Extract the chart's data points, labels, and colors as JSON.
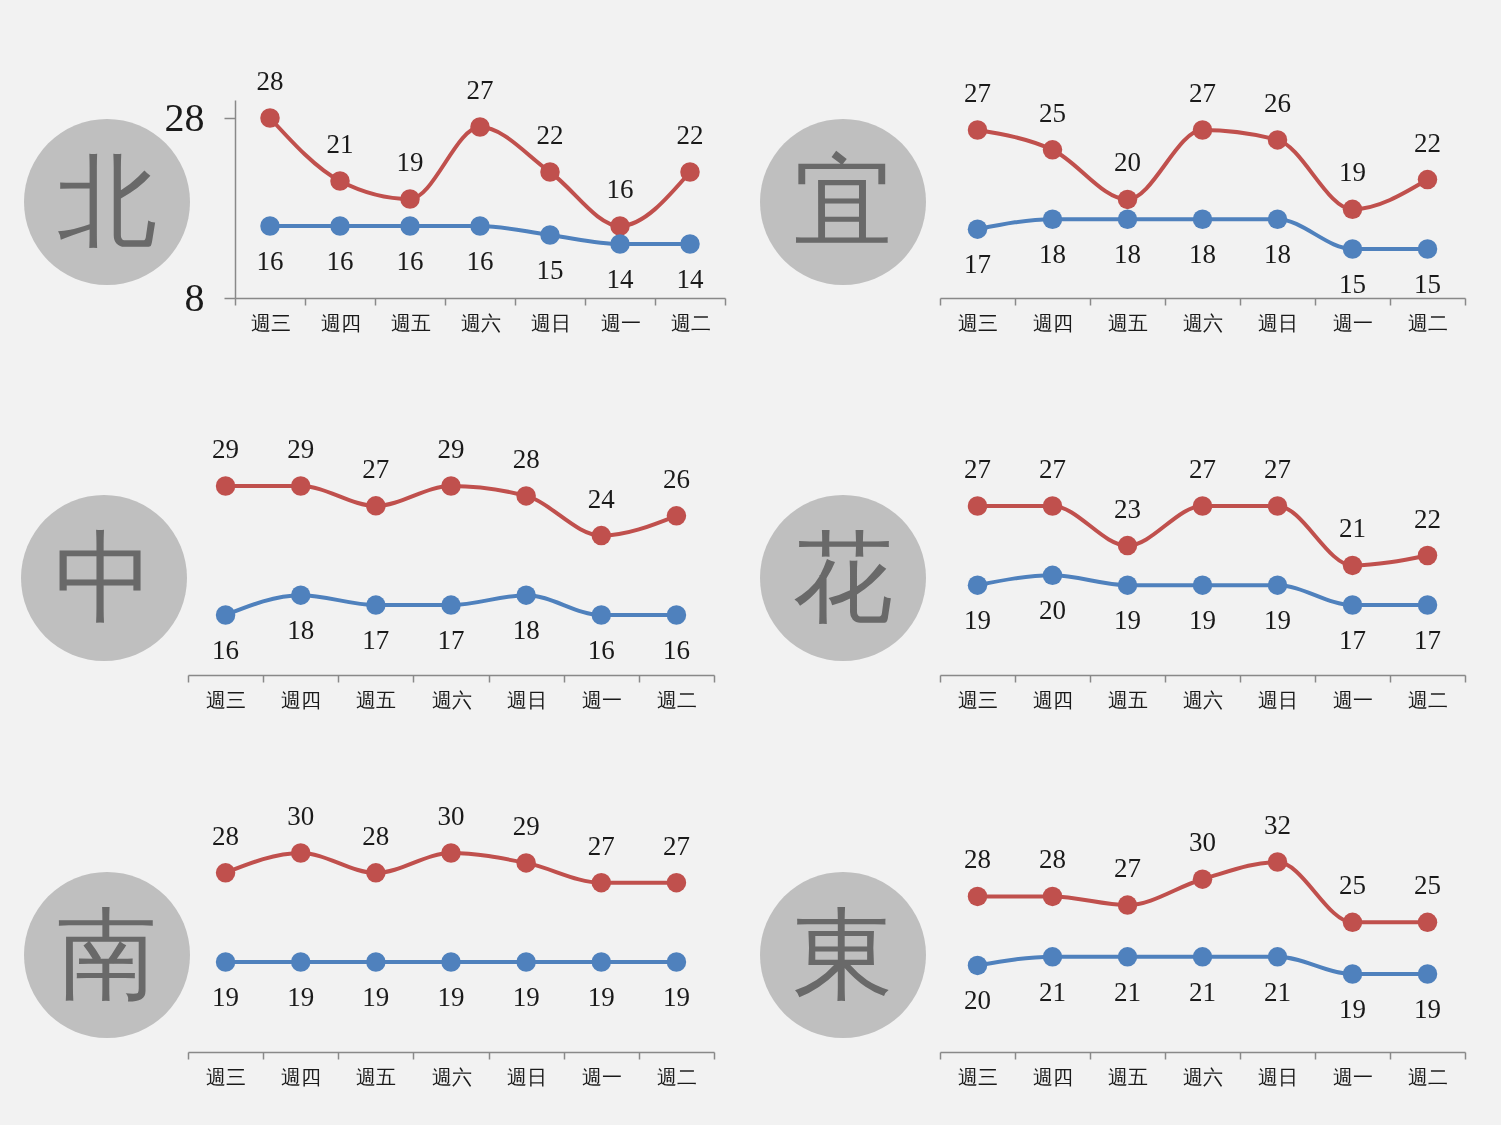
{
  "chart_data": [
    {
      "type": "line",
      "title": "北",
      "categories": [
        "週三",
        "週四",
        "週五",
        "週六",
        "週日",
        "週一",
        "週二"
      ],
      "series": [
        {
          "color": "#c0504d",
          "values": [
            28,
            21,
            19,
            27,
            22,
            16,
            22
          ]
        },
        {
          "color": "#4f81bd",
          "values": [
            16,
            16,
            16,
            16,
            15,
            14,
            14
          ]
        }
      ],
      "ylim": [
        8,
        30
      ],
      "yticks": [
        8,
        28
      ],
      "data_labels": true,
      "marker": "circle",
      "line_style": "solid"
    },
    {
      "type": "line",
      "title": "宜",
      "categories": [
        "週三",
        "週四",
        "週五",
        "週六",
        "週日",
        "週一",
        "週二"
      ],
      "series": [
        {
          "color": "#c0504d",
          "values": [
            27,
            25,
            20,
            27,
            26,
            19,
            22
          ]
        },
        {
          "color": "#4f81bd",
          "values": [
            17,
            18,
            18,
            18,
            18,
            15,
            15
          ]
        }
      ],
      "tick_labels": "x",
      "data_labels": true,
      "marker": "circle",
      "line_style": "solid"
    },
    {
      "type": "line",
      "title": "中",
      "categories": [
        "週三",
        "週四",
        "週五",
        "週六",
        "週日",
        "週一",
        "週二"
      ],
      "series": [
        {
          "color": "#c0504d",
          "values": [
            29,
            29,
            27,
            29,
            28,
            24,
            26
          ]
        },
        {
          "color": "#4f81bd",
          "values": [
            16,
            18,
            17,
            17,
            18,
            16,
            16
          ]
        }
      ],
      "tick_labels": "x",
      "data_labels": true,
      "marker": "circle",
      "line_style": "solid"
    },
    {
      "type": "line",
      "title": "花",
      "categories": [
        "週三",
        "週四",
        "週五",
        "週六",
        "週日",
        "週一",
        "週二"
      ],
      "series": [
        {
          "color": "#c0504d",
          "values": [
            27,
            27,
            23,
            27,
            27,
            21,
            22
          ]
        },
        {
          "color": "#4f81bd",
          "values": [
            19,
            20,
            19,
            19,
            19,
            17,
            17
          ]
        }
      ],
      "tick_labels": "x",
      "data_labels": true,
      "marker": "circle",
      "line_style": "solid"
    },
    {
      "type": "line",
      "title": "南",
      "categories": [
        "週三",
        "週四",
        "週五",
        "週六",
        "週日",
        "週一",
        "週二"
      ],
      "series": [
        {
          "color": "#c0504d",
          "values": [
            28,
            30,
            28,
            30,
            29,
            27,
            27
          ]
        },
        {
          "color": "#4f81bd",
          "values": [
            19,
            19,
            19,
            19,
            19,
            19,
            19
          ]
        }
      ],
      "tick_labels": "x",
      "data_labels": true,
      "marker": "circle",
      "line_style": "solid"
    },
    {
      "type": "line",
      "title": "東",
      "categories": [
        "週三",
        "週四",
        "週五",
        "週六",
        "週日",
        "週一",
        "週二"
      ],
      "series": [
        {
          "color": "#c0504d",
          "values": [
            28,
            28,
            27,
            30,
            32,
            25,
            25
          ]
        },
        {
          "color": "#4f81bd",
          "values": [
            20,
            21,
            21,
            21,
            21,
            19,
            19
          ]
        }
      ],
      "tick_labels": "x",
      "data_labels": true,
      "marker": "circle",
      "line_style": "solid"
    }
  ]
}
